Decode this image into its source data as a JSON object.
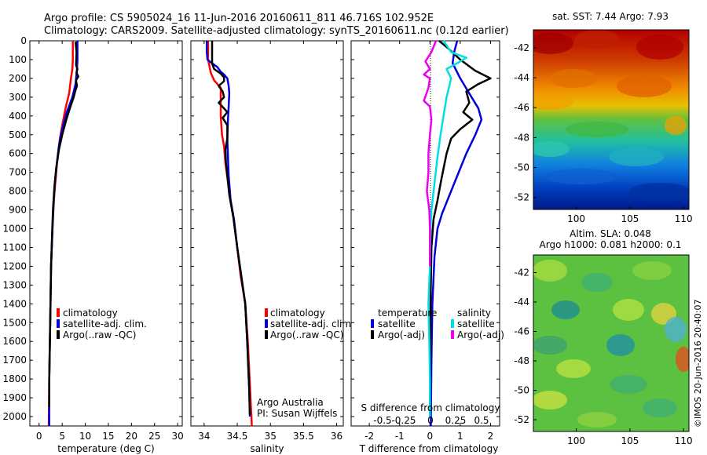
{
  "header": {
    "line1": "Argo profile: CS 5905024_16 11-Jun-2016 20160611_811 46.716S 102.952E",
    "line2": "Climatology: CARS2009. Satellite-adjusted climatology: synTS_20160611.nc (0.12d earlier)"
  },
  "footer_text": {
    "agency": "Argo Australia",
    "pi": "PI: Susan Wijffels",
    "stamp": "©IMOS 20-Jun-2016 20:40:07"
  },
  "colors": {
    "climatology": "#ff0000",
    "satellite": "#0000dd",
    "argo": "#000000",
    "sal_satellite": "#00e0e0",
    "sal_argo": "#ee00ee"
  },
  "chart_data": [
    {
      "type": "line",
      "id": "temperature",
      "xlabel": "temperature (deg C)",
      "xlim": [
        -2,
        31
      ],
      "ylim": [
        0,
        2050
      ],
      "y_reversed": true,
      "xticks": [
        0,
        5,
        10,
        15,
        20,
        25,
        30
      ],
      "yticks": [
        0,
        100,
        200,
        300,
        400,
        500,
        600,
        700,
        800,
        900,
        1000,
        1100,
        1200,
        1300,
        1400,
        1500,
        1600,
        1700,
        1800,
        1900,
        2000
      ],
      "legend": [
        "climatology",
        "satellite-adj. clim.",
        "Argo(..raw -QC)"
      ],
      "series": [
        {
          "name": "climatology",
          "color": "#ff0000",
          "points": [
            [
              7.3,
              0
            ],
            [
              7.3,
              100
            ],
            [
              7.2,
              150
            ],
            [
              6.9,
              200
            ],
            [
              6.5,
              280
            ],
            [
              5.8,
              350
            ],
            [
              5.0,
              450
            ],
            [
              4.5,
              520
            ],
            [
              4.0,
              620
            ],
            [
              3.6,
              730
            ],
            [
              3.2,
              850
            ],
            [
              2.9,
              1000
            ],
            [
              2.6,
              1200
            ],
            [
              2.4,
              1500
            ],
            [
              2.2,
              1800
            ],
            [
              2.1,
              2050
            ]
          ]
        },
        {
          "name": "satellite-adj. clim.",
          "color": "#0000dd",
          "points": [
            [
              8.3,
              0
            ],
            [
              8.3,
              100
            ],
            [
              8.2,
              150
            ],
            [
              7.9,
              230
            ],
            [
              7.2,
              300
            ],
            [
              6.0,
              380
            ],
            [
              5.0,
              470
            ],
            [
              4.3,
              560
            ],
            [
              3.8,
              660
            ],
            [
              3.4,
              760
            ],
            [
              3.1,
              880
            ],
            [
              2.9,
              1000
            ],
            [
              2.6,
              1200
            ],
            [
              2.4,
              1500
            ],
            [
              2.2,
              1800
            ],
            [
              2.2,
              2050
            ]
          ]
        },
        {
          "name": "Argo(..raw -QC)",
          "color": "#000000",
          "points": [
            [
              7.9,
              5
            ],
            [
              8.1,
              60
            ],
            [
              8.0,
              130
            ],
            [
              8.3,
              150
            ],
            [
              8.1,
              170
            ],
            [
              8.5,
              190
            ],
            [
              8.0,
              210
            ],
            [
              8.2,
              240
            ],
            [
              7.8,
              270
            ],
            [
              7.5,
              300
            ],
            [
              6.8,
              350
            ],
            [
              5.9,
              420
            ],
            [
              5.0,
              500
            ],
            [
              4.3,
              580
            ],
            [
              3.7,
              680
            ],
            [
              3.3,
              780
            ],
            [
              3.0,
              900
            ],
            [
              2.8,
              1050
            ],
            [
              2.6,
              1200
            ],
            [
              2.4,
              1500
            ],
            [
              2.2,
              1800
            ],
            [
              2.2,
              1950
            ]
          ]
        }
      ]
    },
    {
      "type": "line",
      "id": "salinity",
      "xlabel": "salinity",
      "xlim": [
        33.8,
        36.1
      ],
      "ylim": [
        0,
        2050
      ],
      "y_reversed": true,
      "xticks": [
        34,
        34.5,
        35,
        35.5,
        36
      ],
      "legend": [
        "climatology",
        "satellite-adj. clim.",
        "Argo(..raw -QC)"
      ],
      "series": [
        {
          "name": "climatology",
          "color": "#ff0000",
          "points": [
            [
              34.06,
              0
            ],
            [
              34.06,
              100
            ],
            [
              34.1,
              170
            ],
            [
              34.15,
              210
            ],
            [
              34.2,
              230
            ],
            [
              34.25,
              250
            ],
            [
              34.25,
              400
            ],
            [
              34.27,
              500
            ],
            [
              34.3,
              560
            ],
            [
              34.32,
              650
            ],
            [
              34.36,
              750
            ],
            [
              34.4,
              850
            ],
            [
              34.45,
              950
            ],
            [
              34.5,
              1100
            ],
            [
              34.55,
              1250
            ],
            [
              34.62,
              1400
            ],
            [
              34.66,
              1600
            ],
            [
              34.7,
              1900
            ],
            [
              34.72,
              2050
            ]
          ]
        },
        {
          "name": "satellite-adj. clim.",
          "color": "#0000dd",
          "points": [
            [
              34.04,
              0
            ],
            [
              34.04,
              60
            ],
            [
              34.05,
              100
            ],
            [
              34.12,
              120
            ],
            [
              34.2,
              140
            ],
            [
              34.25,
              165
            ],
            [
              34.3,
              180
            ],
            [
              34.35,
              200
            ],
            [
              34.37,
              240
            ],
            [
              34.38,
              280
            ],
            [
              34.37,
              350
            ],
            [
              34.36,
              420
            ],
            [
              34.35,
              520
            ],
            [
              34.36,
              620
            ],
            [
              34.37,
              720
            ],
            [
              34.4,
              850
            ],
            [
              34.45,
              950
            ],
            [
              34.5,
              1100
            ],
            [
              34.56,
              1250
            ],
            [
              34.62,
              1400
            ],
            [
              34.65,
              1600
            ],
            [
              34.68,
              1850
            ],
            [
              34.69,
              2000
            ]
          ]
        },
        {
          "name": "Argo(..raw -QC)",
          "color": "#000000",
          "points": [
            [
              34.12,
              0
            ],
            [
              34.12,
              120
            ],
            [
              34.15,
              150
            ],
            [
              34.25,
              175
            ],
            [
              34.3,
              195
            ],
            [
              34.3,
              215
            ],
            [
              34.22,
              240
            ],
            [
              34.28,
              270
            ],
            [
              34.3,
              300
            ],
            [
              34.22,
              330
            ],
            [
              34.3,
              360
            ],
            [
              34.35,
              380
            ],
            [
              34.28,
              410
            ],
            [
              34.35,
              450
            ],
            [
              34.35,
              520
            ],
            [
              34.32,
              580
            ],
            [
              34.33,
              650
            ],
            [
              34.35,
              720
            ],
            [
              34.38,
              820
            ],
            [
              34.44,
              940
            ],
            [
              34.5,
              1100
            ],
            [
              34.56,
              1250
            ],
            [
              34.62,
              1400
            ],
            [
              34.65,
              1600
            ],
            [
              34.68,
              1850
            ],
            [
              34.69,
              1990
            ]
          ]
        }
      ]
    },
    {
      "type": "line",
      "id": "difference",
      "xlabel": "T difference from climatology",
      "xlabel_top": "S difference from climatology",
      "xlim": [
        -2.6,
        2.3
      ],
      "ylim": [
        0,
        2050
      ],
      "y_reversed": true,
      "xticks": [
        -2,
        -1,
        0,
        1,
        2
      ],
      "xticks_top": [
        "-0.5",
        "-0.25",
        "0",
        "0.25",
        "0.5"
      ],
      "legend_headers": [
        "temperature",
        "salinity"
      ],
      "legend_left": [
        "satellite",
        "Argo(-adj)"
      ],
      "legend_right": [
        "satellite",
        "Argo(-adj)"
      ],
      "series": [
        {
          "name": "T satellite",
          "color": "#0000dd",
          "points": [
            [
              0.9,
              0
            ],
            [
              0.8,
              60
            ],
            [
              0.75,
              120
            ],
            [
              1.0,
              200
            ],
            [
              1.3,
              280
            ],
            [
              1.6,
              360
            ],
            [
              1.7,
              420
            ],
            [
              1.5,
              500
            ],
            [
              1.2,
              600
            ],
            [
              0.9,
              720
            ],
            [
              0.6,
              840
            ],
            [
              0.4,
              920
            ],
            [
              0.25,
              1000
            ],
            [
              0.15,
              1150
            ],
            [
              0.08,
              1400
            ],
            [
              0.05,
              1700
            ],
            [
              0.03,
              2050
            ]
          ]
        },
        {
          "name": "T Argo(-adj)",
          "color": "#000000",
          "points": [
            [
              0.3,
              0
            ],
            [
              0.6,
              40
            ],
            [
              1.0,
              100
            ],
            [
              1.5,
              160
            ],
            [
              2.0,
              200
            ],
            [
              1.6,
              230
            ],
            [
              1.2,
              270
            ],
            [
              1.3,
              330
            ],
            [
              1.1,
              380
            ],
            [
              1.4,
              420
            ],
            [
              1.0,
              470
            ],
            [
              0.7,
              520
            ],
            [
              0.55,
              600
            ],
            [
              0.45,
              680
            ],
            [
              0.35,
              760
            ],
            [
              0.25,
              850
            ],
            [
              0.12,
              950
            ],
            [
              0.05,
              1100
            ],
            [
              0.02,
              1400
            ],
            [
              0.01,
              1700
            ],
            [
              0.0,
              2000
            ]
          ]
        },
        {
          "name": "S satellite",
          "color": "#00e0e0",
          "points": [
            [
              0.45,
              0
            ],
            [
              0.7,
              60
            ],
            [
              1.2,
              90
            ],
            [
              0.9,
              120
            ],
            [
              0.55,
              150
            ],
            [
              0.7,
              200
            ],
            [
              0.55,
              300
            ],
            [
              0.45,
              400
            ],
            [
              0.35,
              500
            ],
            [
              0.25,
              620
            ],
            [
              0.15,
              760
            ],
            [
              0.05,
              900
            ],
            [
              0.02,
              1000
            ],
            [
              0.0,
              1200
            ],
            [
              -0.05,
              1400
            ],
            [
              -0.02,
              1600
            ],
            [
              0.0,
              1800
            ],
            [
              0.0,
              2000
            ]
          ]
        },
        {
          "name": "S Argo(-adj)",
          "color": "#ee00ee",
          "points": [
            [
              0.2,
              0
            ],
            [
              0.05,
              60
            ],
            [
              -0.15,
              110
            ],
            [
              0.0,
              150
            ],
            [
              -0.2,
              180
            ],
            [
              0.0,
              200
            ],
            [
              -0.05,
              250
            ],
            [
              -0.2,
              320
            ],
            [
              0.0,
              350
            ],
            [
              0.05,
              420
            ],
            [
              0.0,
              500
            ],
            [
              -0.05,
              600
            ],
            [
              -0.05,
              700
            ],
            [
              -0.1,
              800
            ],
            [
              -0.02,
              900
            ],
            [
              0.0,
              1000
            ],
            [
              0.0,
              1100
            ],
            [
              0.0,
              1200
            ]
          ]
        }
      ]
    },
    {
      "type": "heatmap",
      "id": "sst",
      "title": "sat. SST: 7.44  Argo: 7.93",
      "xticks": [
        100,
        105,
        110
      ],
      "yticks": [
        -42,
        -44,
        -46,
        -48,
        -50,
        -52
      ],
      "xlim": [
        96,
        110.5
      ],
      "ylim": [
        -52.8,
        -40.8
      ]
    },
    {
      "type": "heatmap",
      "id": "sla",
      "title": "Altim. SLA: 0.048",
      "subtitle": "Argo h1000: 0.081 h2000: 0.1",
      "xticks": [
        100,
        105,
        110
      ],
      "yticks": [
        -42,
        -44,
        -46,
        -48,
        -50,
        -52
      ],
      "xlim": [
        96,
        110.5
      ],
      "ylim": [
        -52.8,
        -40.8
      ]
    }
  ]
}
